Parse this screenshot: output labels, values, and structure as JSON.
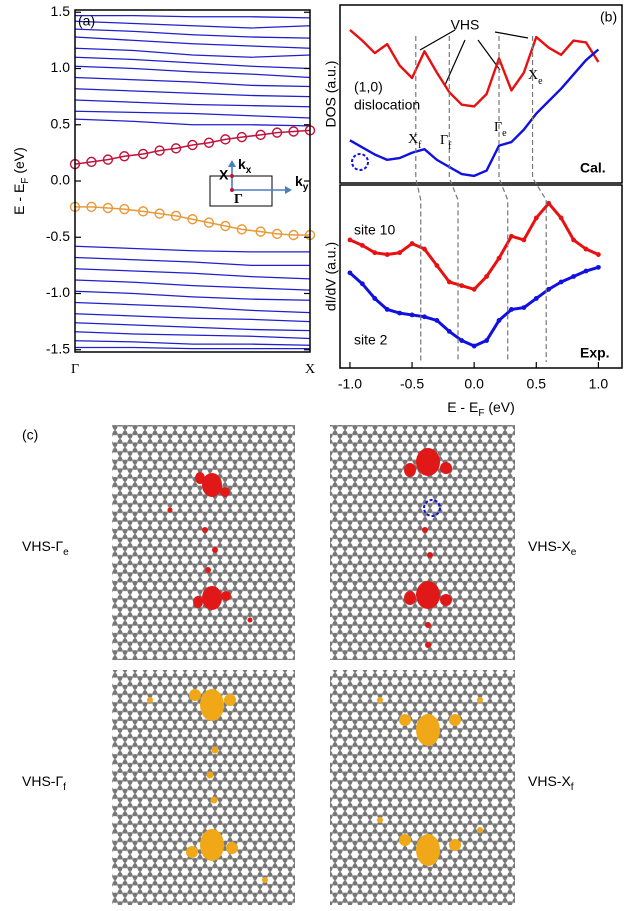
{
  "chart_data": [
    {
      "type": "line",
      "panel_label": "(a)",
      "ylabel": {
        "text": "E - E",
        "sub": "F",
        "after": " (eV)"
      },
      "x": [
        0,
        0.25,
        0.5,
        0.75,
        1
      ],
      "xlim": [
        0,
        1
      ],
      "xticks": [
        {
          "value": 0,
          "label": "Γ"
        },
        {
          "value": 1,
          "label": "X"
        }
      ],
      "ylim": [
        -1.52,
        1.52
      ],
      "yticks": [
        -1.5,
        {
          "value": -1,
          "label": "-1.0"
        },
        -0.5,
        {
          "value": 0,
          "label": "0.0"
        },
        0.5,
        {
          "value": 1,
          "label": "1.0"
        },
        1.5
      ],
      "series": [
        {
          "color": "#1f1fcf",
          "values": [
            1.47,
            1.47,
            1.46,
            1.46,
            1.45
          ]
        },
        {
          "color": "#1f1fcf",
          "values": [
            1.42,
            1.4,
            1.38,
            1.36,
            1.38
          ]
        },
        {
          "color": "#1f1fcf",
          "values": [
            1.35,
            1.33,
            1.3,
            1.28,
            1.27
          ]
        },
        {
          "color": "#1f1fcf",
          "values": [
            1.28,
            1.25,
            1.22,
            1.2,
            1.18
          ]
        },
        {
          "color": "#1f1fcf",
          "values": [
            1.18,
            1.16,
            1.12,
            1.1,
            1.12
          ]
        },
        {
          "color": "#1f1fcf",
          "values": [
            1.1,
            1.08,
            1.05,
            1.02,
            1.0
          ]
        },
        {
          "color": "#1f1fcf",
          "values": [
            1.02,
            1.0,
            0.97,
            0.95,
            0.92
          ]
        },
        {
          "color": "#1f1fcf",
          "values": [
            0.92,
            0.9,
            0.88,
            0.85,
            0.84
          ]
        },
        {
          "color": "#1f1fcf",
          "values": [
            0.82,
            0.8,
            0.78,
            0.76,
            0.75
          ]
        },
        {
          "color": "#1f1fcf",
          "values": [
            0.72,
            0.7,
            0.68,
            0.67,
            0.66
          ]
        },
        {
          "color": "#1f1fcf",
          "values": [
            0.62,
            0.61,
            0.6,
            0.58,
            0.56
          ]
        },
        {
          "color": "#1f1fcf",
          "values": [
            0.55,
            0.53,
            0.5,
            0.5,
            0.49
          ]
        },
        {
          "color": "#1f1fcf",
          "values": [
            -0.58,
            -0.6,
            -0.62,
            -0.63,
            -0.63
          ]
        },
        {
          "color": "#1f1fcf",
          "values": [
            -0.68,
            -0.7,
            -0.72,
            -0.75,
            -0.75
          ]
        },
        {
          "color": "#1f1fcf",
          "values": [
            -0.78,
            -0.8,
            -0.82,
            -0.85,
            -0.87
          ]
        },
        {
          "color": "#1f1fcf",
          "values": [
            -0.88,
            -0.9,
            -0.93,
            -0.95,
            -0.97
          ]
        },
        {
          "color": "#1f1fcf",
          "values": [
            -0.98,
            -1.0,
            -1.03,
            -1.05,
            -1.06
          ]
        },
        {
          "color": "#1f1fcf",
          "values": [
            -1.08,
            -1.1,
            -1.12,
            -1.15,
            -1.17
          ]
        },
        {
          "color": "#1f1fcf",
          "values": [
            -1.18,
            -1.2,
            -1.22,
            -1.23,
            -1.25
          ]
        },
        {
          "color": "#1f1fcf",
          "values": [
            -1.26,
            -1.28,
            -1.3,
            -1.32,
            -1.33
          ]
        },
        {
          "color": "#1f1fcf",
          "values": [
            -1.34,
            -1.36,
            -1.37,
            -1.38,
            -1.4
          ]
        },
        {
          "color": "#1f1fcf",
          "values": [
            -1.42,
            -1.43,
            -1.45,
            -1.45,
            -1.46
          ]
        },
        {
          "color": "#1f1fcf",
          "values": [
            -1.48,
            -1.48,
            -1.49,
            -1.49,
            -1.49
          ]
        },
        {
          "color": "#c0143c",
          "marker": "circle",
          "x": [
            0,
            0.07,
            0.14,
            0.21,
            0.29,
            0.36,
            0.43,
            0.5,
            0.57,
            0.64,
            0.71,
            0.79,
            0.86,
            0.93,
            1.0
          ],
          "values": [
            0.15,
            0.17,
            0.19,
            0.22,
            0.24,
            0.27,
            0.29,
            0.32,
            0.34,
            0.37,
            0.39,
            0.41,
            0.43,
            0.44,
            0.45
          ]
        },
        {
          "color": "#e89a3a",
          "marker": "circle",
          "x": [
            0,
            0.07,
            0.14,
            0.21,
            0.29,
            0.36,
            0.43,
            0.5,
            0.57,
            0.64,
            0.71,
            0.79,
            0.86,
            0.93,
            1.0
          ],
          "values": [
            -0.23,
            -0.23,
            -0.24,
            -0.25,
            -0.27,
            -0.29,
            -0.31,
            -0.34,
            -0.37,
            -0.4,
            -0.43,
            -0.45,
            -0.47,
            -0.48,
            -0.48
          ]
        }
      ],
      "inset": {
        "kx": {
          "text": "k",
          "sub": "x"
        },
        "ky": {
          "text": "k",
          "sub": "y"
        },
        "x_point": "X",
        "gamma_point": "Γ"
      }
    },
    {
      "type": "line",
      "panel_label": "(b)",
      "ylabel": "DOS (a.u.)",
      "tag": "Cal.",
      "x": [
        -1,
        -0.9,
        -0.8,
        -0.7,
        -0.6,
        -0.5,
        -0.4,
        -0.3,
        -0.2,
        -0.1,
        0,
        0.1,
        0.2,
        0.3,
        0.4,
        0.5,
        0.6,
        0.7,
        0.8,
        0.9,
        1
      ],
      "xlim": [
        -1.08,
        1.19
      ],
      "ylim": [
        0,
        10
      ],
      "series": [
        {
          "color": "#e81010",
          "values": [
            8.6,
            8.0,
            7.3,
            7.8,
            6.6,
            5.9,
            7.4,
            6.2,
            5.1,
            4.4,
            4.3,
            5.0,
            7.0,
            5.2,
            6.2,
            8.2,
            7.6,
            7.2,
            8.0,
            7.9,
            6.8
          ]
        },
        {
          "color": "#1010e0",
          "values": [
            2.4,
            2.0,
            1.6,
            1.3,
            1.4,
            1.7,
            1.9,
            1.3,
            0.9,
            0.5,
            0.4,
            0.7,
            2.1,
            2.3,
            3.0,
            3.9,
            4.6,
            5.3,
            6.1,
            6.9,
            7.5
          ]
        }
      ],
      "vhs_x": [
        -0.47,
        -0.2,
        0.2,
        0.47
      ],
      "vhs_label": "VHS",
      "dislocation_label": [
        "(1,0)",
        "dislocation"
      ],
      "vhs_labels": [
        {
          "text": "X",
          "sub": "f"
        },
        {
          "text": "Γ",
          "sub": "f"
        },
        {
          "text": "Γ",
          "sub": "e"
        },
        {
          "text": "X",
          "sub": "e"
        }
      ]
    },
    {
      "type": "line",
      "ylabel": "dI/dV (a.u.)",
      "tag": "Exp.",
      "x": [
        -1,
        -0.9,
        -0.8,
        -0.7,
        -0.6,
        -0.5,
        -0.4,
        -0.3,
        -0.2,
        -0.1,
        0,
        0.1,
        0.2,
        0.3,
        0.4,
        0.5,
        0.6,
        0.7,
        0.8,
        0.9,
        1
      ],
      "xlim": [
        -1.08,
        1.19
      ],
      "ylim": [
        0,
        10
      ],
      "xlabel": {
        "text": "E - E",
        "sub": "F",
        "after": " (eV)"
      },
      "xticks": [
        {
          "value": -1,
          "label": "-1.0"
        },
        -0.5,
        {
          "value": 0,
          "label": "0.0"
        },
        0.5,
        {
          "value": 1,
          "label": "1.0"
        }
      ],
      "series": [
        {
          "name": "site 10",
          "color": "#e81010",
          "values": [
            7.0,
            6.7,
            6.3,
            6.2,
            6.3,
            6.8,
            6.5,
            5.6,
            4.7,
            4.5,
            4.3,
            5.0,
            6.0,
            7.2,
            7.0,
            8.2,
            9.0,
            8.2,
            7.0,
            6.5,
            6.2
          ]
        },
        {
          "name": "site 2",
          "color": "#1010e0",
          "values": [
            5.2,
            4.6,
            3.8,
            3.2,
            3.0,
            2.9,
            2.8,
            2.6,
            2.0,
            1.5,
            1.2,
            1.5,
            2.6,
            3.2,
            3.3,
            3.8,
            4.3,
            4.7,
            5.0,
            5.3,
            5.5
          ]
        }
      ],
      "vhs_x": [
        -0.43,
        -0.13,
        0.27,
        0.58
      ]
    }
  ],
  "panel_c": {
    "panel_label": "(c)",
    "labels": [
      {
        "text": "VHS-Γ",
        "sub": "e"
      },
      {
        "text": "VHS-X",
        "sub": "e"
      },
      {
        "text": "VHS-Γ",
        "sub": "f"
      },
      {
        "text": "VHS-X",
        "sub": "f"
      }
    ]
  }
}
